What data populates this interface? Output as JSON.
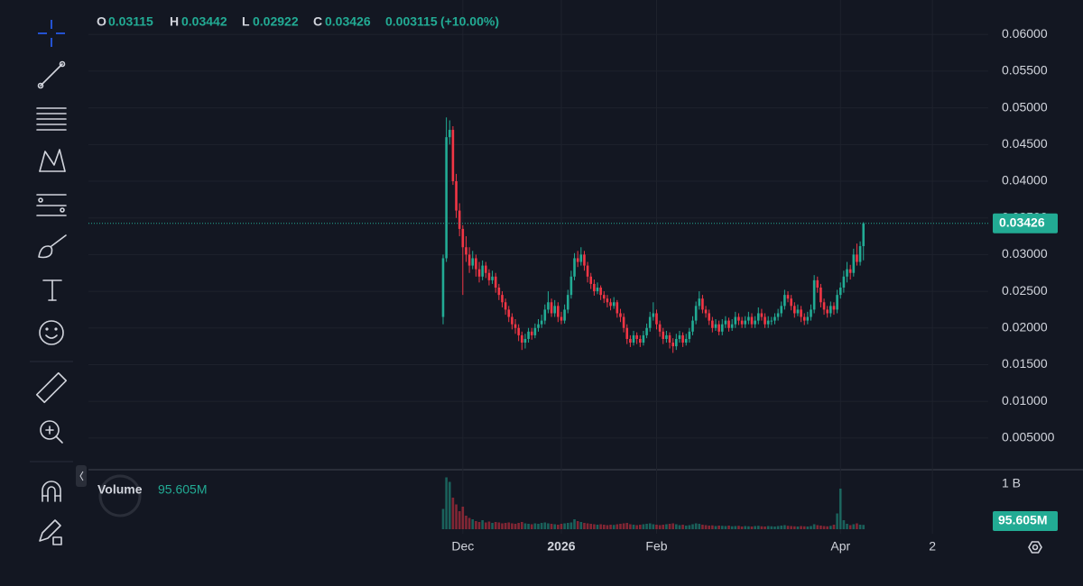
{
  "legend": {
    "labels": [
      "O",
      "H",
      "L",
      "C"
    ],
    "change": 0.003115,
    "change_label": "(+10.00%)"
  },
  "chart_data": {
    "type": "candlestick",
    "grid": true,
    "colors": {
      "up": "#22ab94",
      "down": "#f23645",
      "line": "#22ab94"
    },
    "xlim": [
      -108,
      166
    ],
    "xticks": [
      {
        "value": 6,
        "label": "Dec"
      },
      {
        "value": 36,
        "label": "2026"
      },
      {
        "value": 65,
        "label": "Feb"
      },
      {
        "value": 121,
        "label": "Apr"
      },
      {
        "value": 149,
        "label": "2"
      }
    ],
    "ylim": [
      0.0008,
      0.0647
    ],
    "yticks": [
      {
        "value": 0.06,
        "label": "0.06000"
      },
      {
        "value": 0.055,
        "label": "0.05500"
      },
      {
        "value": 0.05,
        "label": "0.05000"
      },
      {
        "value": 0.045,
        "label": "0.04500"
      },
      {
        "value": 0.04,
        "label": "0.04000"
      },
      {
        "value": 0.035,
        "label": "0.03500"
      },
      {
        "value": 0.03,
        "label": "0.03000"
      },
      {
        "value": 0.025,
        "label": "0.02500"
      },
      {
        "value": 0.02,
        "label": "0.02000"
      },
      {
        "value": 0.015,
        "label": "0.01500"
      },
      {
        "value": 0.01,
        "label": "0.01000"
      },
      {
        "value": 0.005,
        "label": "0.005000"
      }
    ],
    "candles": [
      [
        0.0215,
        0.03,
        0.0205,
        0.0295
      ],
      [
        0.0295,
        0.0487,
        0.029,
        0.046
      ],
      [
        0.046,
        0.0483,
        0.045,
        0.047
      ],
      [
        0.047,
        0.0475,
        0.0395,
        0.04
      ],
      [
        0.04,
        0.041,
        0.035,
        0.036
      ],
      [
        0.036,
        0.037,
        0.0325,
        0.0335
      ],
      [
        0.0335,
        0.034,
        0.0245,
        0.031
      ],
      [
        0.031,
        0.0325,
        0.029,
        0.03
      ],
      [
        0.03,
        0.031,
        0.0275,
        0.0285
      ],
      [
        0.0285,
        0.0305,
        0.028,
        0.0295
      ],
      [
        0.0295,
        0.03,
        0.027,
        0.028
      ],
      [
        0.028,
        0.029,
        0.0262,
        0.027
      ],
      [
        0.027,
        0.0292,
        0.0265,
        0.0285
      ],
      [
        0.0285,
        0.029,
        0.0268,
        0.0275
      ],
      [
        0.0275,
        0.028,
        0.0258,
        0.0265
      ],
      [
        0.0265,
        0.0278,
        0.026,
        0.027
      ],
      [
        0.027,
        0.0275,
        0.0248,
        0.0255
      ],
      [
        0.0255,
        0.026,
        0.0238,
        0.0245
      ],
      [
        0.0245,
        0.025,
        0.0228,
        0.0235
      ],
      [
        0.0235,
        0.024,
        0.0218,
        0.0225
      ],
      [
        0.0225,
        0.023,
        0.0208,
        0.0215
      ],
      [
        0.0215,
        0.022,
        0.0198,
        0.0205
      ],
      [
        0.0205,
        0.0212,
        0.0192,
        0.02
      ],
      [
        0.02,
        0.0205,
        0.0182,
        0.019
      ],
      [
        0.019,
        0.0195,
        0.017,
        0.018
      ],
      [
        0.018,
        0.0192,
        0.0172,
        0.0185
      ],
      [
        0.0185,
        0.02,
        0.018,
        0.0195
      ],
      [
        0.0195,
        0.02,
        0.0184,
        0.019
      ],
      [
        0.019,
        0.0206,
        0.0186,
        0.02
      ],
      [
        0.02,
        0.0212,
        0.0195,
        0.0205
      ],
      [
        0.0205,
        0.0218,
        0.02,
        0.021
      ],
      [
        0.021,
        0.0232,
        0.0205,
        0.0225
      ],
      [
        0.0225,
        0.025,
        0.022,
        0.0235
      ],
      [
        0.0235,
        0.024,
        0.0215,
        0.022
      ],
      [
        0.022,
        0.0238,
        0.0215,
        0.023
      ],
      [
        0.023,
        0.0235,
        0.0208,
        0.0215
      ],
      [
        0.0215,
        0.0222,
        0.0205,
        0.021
      ],
      [
        0.021,
        0.0232,
        0.0206,
        0.0225
      ],
      [
        0.0225,
        0.0252,
        0.022,
        0.0245
      ],
      [
        0.0245,
        0.0278,
        0.024,
        0.027
      ],
      [
        0.027,
        0.0302,
        0.0265,
        0.0295
      ],
      [
        0.0295,
        0.0305,
        0.0283,
        0.029
      ],
      [
        0.029,
        0.031,
        0.0285,
        0.03
      ],
      [
        0.03,
        0.0305,
        0.0278,
        0.0285
      ],
      [
        0.0285,
        0.029,
        0.0262,
        0.027
      ],
      [
        0.027,
        0.0275,
        0.0253,
        0.026
      ],
      [
        0.026,
        0.0266,
        0.0244,
        0.025
      ],
      [
        0.025,
        0.0262,
        0.0246,
        0.0255
      ],
      [
        0.0255,
        0.0258,
        0.0238,
        0.0245
      ],
      [
        0.0245,
        0.025,
        0.0234,
        0.024
      ],
      [
        0.024,
        0.0245,
        0.0228,
        0.0235
      ],
      [
        0.0235,
        0.024,
        0.0224,
        0.023
      ],
      [
        0.023,
        0.0242,
        0.0226,
        0.0235
      ],
      [
        0.0235,
        0.0238,
        0.0214,
        0.022
      ],
      [
        0.022,
        0.0226,
        0.0208,
        0.0215
      ],
      [
        0.0215,
        0.022,
        0.0194,
        0.02
      ],
      [
        0.02,
        0.0205,
        0.0178,
        0.0185
      ],
      [
        0.0185,
        0.019,
        0.0174,
        0.018
      ],
      [
        0.018,
        0.0196,
        0.0176,
        0.019
      ],
      [
        0.019,
        0.0194,
        0.0178,
        0.0185
      ],
      [
        0.0185,
        0.019,
        0.0174,
        0.018
      ],
      [
        0.018,
        0.0196,
        0.0176,
        0.019
      ],
      [
        0.019,
        0.0206,
        0.0186,
        0.02
      ],
      [
        0.02,
        0.0222,
        0.0195,
        0.0215
      ],
      [
        0.0215,
        0.0235,
        0.021,
        0.022
      ],
      [
        0.022,
        0.0225,
        0.0198,
        0.0205
      ],
      [
        0.0205,
        0.021,
        0.0188,
        0.0195
      ],
      [
        0.0195,
        0.02,
        0.0178,
        0.0185
      ],
      [
        0.0185,
        0.0196,
        0.018,
        0.019
      ],
      [
        0.019,
        0.0194,
        0.0172,
        0.018
      ],
      [
        0.018,
        0.0186,
        0.0166,
        0.0175
      ],
      [
        0.0175,
        0.0192,
        0.017,
        0.0185
      ],
      [
        0.0185,
        0.0196,
        0.018,
        0.019
      ],
      [
        0.019,
        0.0194,
        0.0174,
        0.018
      ],
      [
        0.018,
        0.0192,
        0.0176,
        0.0185
      ],
      [
        0.0185,
        0.02,
        0.018,
        0.0195
      ],
      [
        0.0195,
        0.0216,
        0.019,
        0.021
      ],
      [
        0.021,
        0.0236,
        0.0205,
        0.023
      ],
      [
        0.023,
        0.025,
        0.0225,
        0.024
      ],
      [
        0.024,
        0.0245,
        0.022,
        0.0225
      ],
      [
        0.0225,
        0.023,
        0.0214,
        0.022
      ],
      [
        0.022,
        0.0225,
        0.0204,
        0.021
      ],
      [
        0.021,
        0.0215,
        0.0194,
        0.02
      ],
      [
        0.02,
        0.0212,
        0.0196,
        0.0205
      ],
      [
        0.0205,
        0.021,
        0.019,
        0.0195
      ],
      [
        0.0195,
        0.0212,
        0.019,
        0.0205
      ],
      [
        0.0205,
        0.0216,
        0.02,
        0.021
      ],
      [
        0.021,
        0.0214,
        0.0195,
        0.02
      ],
      [
        0.02,
        0.0212,
        0.0196,
        0.0205
      ],
      [
        0.0205,
        0.0222,
        0.02,
        0.0215
      ],
      [
        0.0215,
        0.022,
        0.0204,
        0.021
      ],
      [
        0.021,
        0.0215,
        0.02,
        0.0205
      ],
      [
        0.0205,
        0.0216,
        0.02,
        0.021
      ],
      [
        0.021,
        0.0222,
        0.0205,
        0.0215
      ],
      [
        0.0215,
        0.022,
        0.02,
        0.0205
      ],
      [
        0.0205,
        0.0216,
        0.02,
        0.021
      ],
      [
        0.021,
        0.0228,
        0.0205,
        0.022
      ],
      [
        0.022,
        0.0226,
        0.021,
        0.0215
      ],
      [
        0.0215,
        0.022,
        0.02,
        0.0205
      ],
      [
        0.0205,
        0.0216,
        0.02,
        0.021
      ],
      [
        0.021,
        0.0215,
        0.0204,
        0.021
      ],
      [
        0.021,
        0.022,
        0.0205,
        0.0215
      ],
      [
        0.0215,
        0.0226,
        0.021,
        0.022
      ],
      [
        0.022,
        0.0236,
        0.0215,
        0.023
      ],
      [
        0.023,
        0.0252,
        0.0225,
        0.0245
      ],
      [
        0.0245,
        0.025,
        0.0235,
        0.024
      ],
      [
        0.024,
        0.0245,
        0.0224,
        0.023
      ],
      [
        0.023,
        0.0235,
        0.0214,
        0.022
      ],
      [
        0.022,
        0.0232,
        0.0216,
        0.0225
      ],
      [
        0.0225,
        0.023,
        0.0208,
        0.0215
      ],
      [
        0.0215,
        0.022,
        0.0204,
        0.021
      ],
      [
        0.021,
        0.0222,
        0.0205,
        0.0215
      ],
      [
        0.0215,
        0.0232,
        0.021,
        0.0225
      ],
      [
        0.0225,
        0.0272,
        0.022,
        0.0265
      ],
      [
        0.0265,
        0.027,
        0.0248,
        0.0255
      ],
      [
        0.0255,
        0.026,
        0.0228,
        0.0235
      ],
      [
        0.0235,
        0.024,
        0.0218,
        0.0225
      ],
      [
        0.0225,
        0.023,
        0.0214,
        0.022
      ],
      [
        0.022,
        0.0236,
        0.0215,
        0.023
      ],
      [
        0.023,
        0.0235,
        0.0218,
        0.0225
      ],
      [
        0.0225,
        0.0252,
        0.022,
        0.0245
      ],
      [
        0.0245,
        0.0262,
        0.024,
        0.0255
      ],
      [
        0.0255,
        0.0278,
        0.0248,
        0.027
      ],
      [
        0.027,
        0.029,
        0.0262,
        0.028
      ],
      [
        0.028,
        0.0286,
        0.0266,
        0.0275
      ],
      [
        0.0275,
        0.0308,
        0.027,
        0.03
      ],
      [
        0.03,
        0.0315,
        0.0285,
        0.029
      ],
      [
        0.029,
        0.0318,
        0.0285,
        0.03115
      ],
      [
        0.03115,
        0.03442,
        0.02922,
        0.03426
      ]
    ],
    "volume": {
      "name": "Volume",
      "last_label": "95.605M",
      "ylim": [
        0,
        1300000000
      ],
      "yticks": [
        {
          "value": 1000000000,
          "label": "1 B"
        }
      ],
      "values": [
        450000000,
        1150000000,
        1050000000,
        700000000,
        550000000,
        400000000,
        500000000,
        300000000,
        250000000,
        220000000,
        180000000,
        160000000,
        200000000,
        150000000,
        170000000,
        140000000,
        160000000,
        150000000,
        130000000,
        140000000,
        150000000,
        130000000,
        120000000,
        140000000,
        160000000,
        130000000,
        120000000,
        110000000,
        130000000,
        120000000,
        140000000,
        150000000,
        130000000,
        120000000,
        110000000,
        100000000,
        120000000,
        130000000,
        140000000,
        150000000,
        220000000,
        180000000,
        160000000,
        140000000,
        130000000,
        120000000,
        110000000,
        100000000,
        110000000,
        100000000,
        90000000,
        100000000,
        95000000,
        110000000,
        120000000,
        130000000,
        140000000,
        110000000,
        100000000,
        90000000,
        100000000,
        110000000,
        120000000,
        130000000,
        110000000,
        100000000,
        90000000,
        100000000,
        110000000,
        120000000,
        130000000,
        110000000,
        90000000,
        100000000,
        80000000,
        90000000,
        110000000,
        130000000,
        120000000,
        100000000,
        90000000,
        80000000,
        85000000,
        70000000,
        80000000,
        75000000,
        70000000,
        80000000,
        65000000,
        70000000,
        75000000,
        60000000,
        70000000,
        65000000,
        60000000,
        70000000,
        75000000,
        65000000,
        60000000,
        70000000,
        65000000,
        60000000,
        70000000,
        80000000,
        90000000,
        75000000,
        70000000,
        65000000,
        60000000,
        70000000,
        65000000,
        60000000,
        70000000,
        110000000,
        90000000,
        80000000,
        70000000,
        65000000,
        75000000,
        100000000,
        350000000,
        900000000,
        200000000,
        120000000,
        90000000,
        110000000,
        130000000,
        100000000,
        95605000
      ]
    }
  }
}
